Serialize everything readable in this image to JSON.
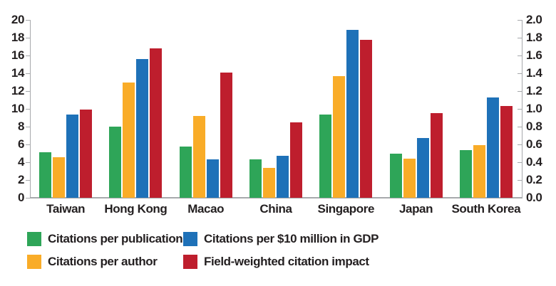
{
  "chart_data": {
    "type": "bar",
    "title": "",
    "xlabel": "",
    "ylabel": "",
    "grid": false,
    "legend_position": "bottom",
    "categories": [
      "Taiwan",
      "Hong Kong",
      "Macao",
      "China",
      "Singapore",
      "Japan",
      "South Korea"
    ],
    "series": [
      {
        "name": "Citations per publication",
        "color": "#2ea558",
        "axis": "left",
        "values": [
          5.1,
          8.0,
          5.8,
          4.3,
          9.4,
          5.0,
          5.4
        ]
      },
      {
        "name": "Citations per author",
        "color": "#f9ac28",
        "axis": "left",
        "values": [
          4.6,
          13.0,
          9.2,
          3.4,
          13.7,
          4.4,
          5.9
        ]
      },
      {
        "name": "Citations per $10 million in GDP",
        "color": "#1e71b8",
        "axis": "left",
        "values": [
          9.4,
          15.6,
          4.3,
          4.7,
          18.9,
          6.7,
          11.3
        ]
      },
      {
        "name": "Field-weighted citation impact",
        "color": "#be1e2d",
        "axis": "right",
        "values": [
          0.99,
          1.68,
          1.41,
          0.85,
          1.78,
          0.95,
          1.03
        ]
      }
    ],
    "left_axis": {
      "min": 0,
      "max": 20,
      "tick_labels": [
        "20",
        "18",
        "16",
        "14",
        "12",
        "10",
        "8",
        "6",
        "4",
        "2",
        "0"
      ]
    },
    "right_axis": {
      "min": 0,
      "max": 2.0,
      "tick_labels": [
        "2.0",
        "1.8",
        "1.6",
        "1.4",
        "1.2",
        "1.0",
        "0.8",
        "0.6",
        "0.4",
        "0.2",
        "0.0"
      ]
    }
  },
  "colors": {
    "axis_line": "#a7a9ac",
    "text": "#231f20",
    "background": "#ffffff"
  }
}
